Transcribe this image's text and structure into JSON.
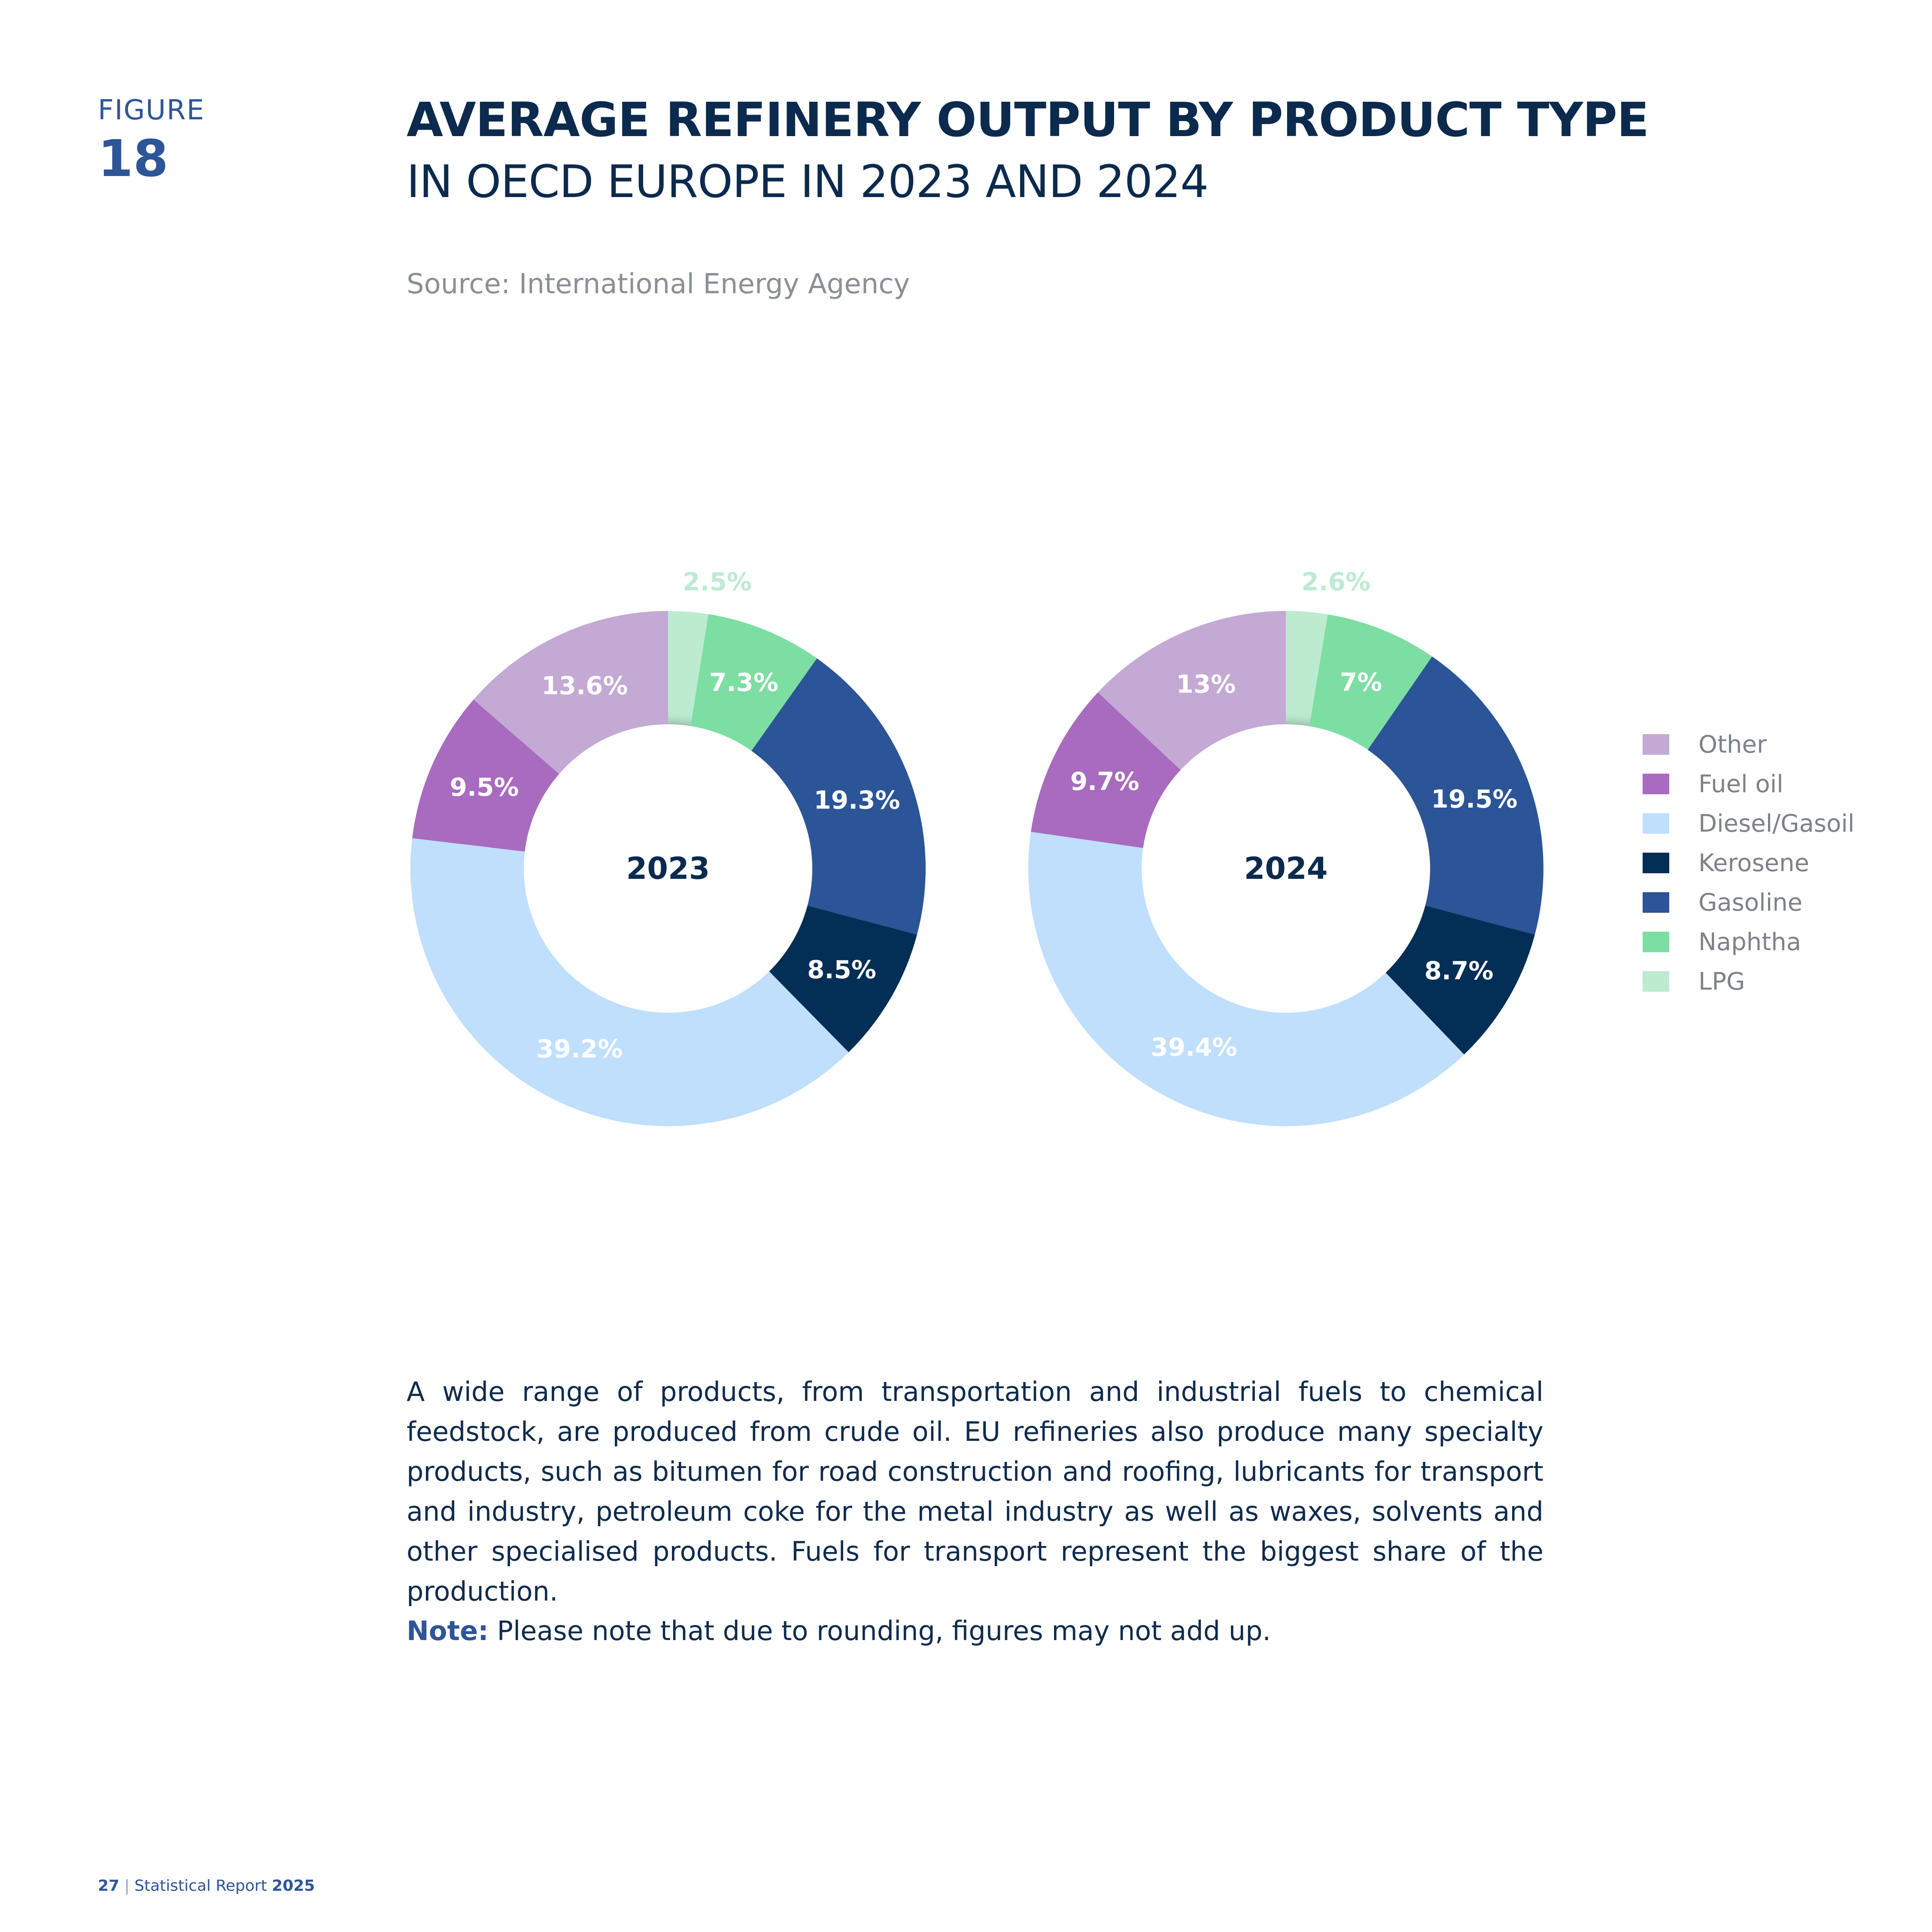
{
  "figure": {
    "label": "FIGURE",
    "number": "18"
  },
  "title": "AVERAGE REFINERY OUTPUT BY PRODUCT TYPE",
  "subtitle": "IN OECD EUROPE IN 2023 AND 2024",
  "source": "Source: International Energy Agency",
  "chart_data": [
    {
      "type": "pie",
      "title": "2023",
      "categories": [
        "LPG",
        "Naphtha",
        "Gasoline",
        "Kerosene",
        "Diesel/Gasoil",
        "Fuel oil",
        "Other"
      ],
      "values": [
        2.5,
        7.3,
        19.3,
        8.5,
        39.2,
        9.5,
        13.6
      ],
      "labels": [
        "2.5%",
        "7.3%",
        "19.3%",
        "8.5%",
        "39.2%",
        "9.5%",
        "13.6%"
      ],
      "legend": "right"
    },
    {
      "type": "pie",
      "title": "2024",
      "categories": [
        "LPG",
        "Naphtha",
        "Gasoline",
        "Kerosene",
        "Diesel/Gasoil",
        "Fuel oil",
        "Other"
      ],
      "values": [
        2.6,
        7,
        19.5,
        8.7,
        39.4,
        9.7,
        13
      ],
      "labels": [
        "2.6%",
        "7%",
        "19.5%",
        "8.7%",
        "39.4%",
        "9.7%",
        "13%"
      ],
      "legend": "right"
    }
  ],
  "colors": {
    "LPG": "#bdebd0",
    "Naphtha": "#7ddea2",
    "Gasoline": "#2c5597",
    "Kerosene": "#032e56",
    "Diesel/Gasoil": "#bfdffd",
    "Fuel oil": "#a86bbf",
    "Other": "#c4a9d4"
  },
  "legend": [
    {
      "label": "Other",
      "color": "#c4a9d4"
    },
    {
      "label": "Fuel oil",
      "color": "#a86bbf"
    },
    {
      "label": "Diesel/Gasoil",
      "color": "#bfdffd"
    },
    {
      "label": "Kerosene",
      "color": "#032e56"
    },
    {
      "label": "Gasoline",
      "color": "#2c5597"
    },
    {
      "label": "Naphtha",
      "color": "#7ddea2"
    },
    {
      "label": "LPG",
      "color": "#bdebd0"
    }
  ],
  "body_text": "A wide range of products, from transportation and industrial fuels to chemical feedstock, are produced from crude oil. EU refineries also produce many specialty products, such as bitumen for road construction and roofing, lubricants for transport and industry, petroleum coke for the metal industry as well as waxes, solvents and other specialised products. Fuels for transport represent the biggest share of the production.",
  "note": {
    "label": "Note:",
    "text": " Please note that due to rounding, figures may not add up."
  },
  "footer": {
    "page": "27",
    "separator": "|",
    "report": "Statistical Report",
    "year": "2025"
  }
}
